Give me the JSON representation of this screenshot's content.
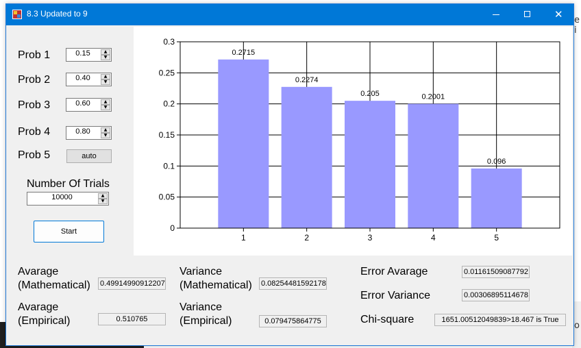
{
  "window": {
    "title": "8.3 Updated to 9"
  },
  "background": {
    "text_right_top": "e i",
    "text_right_bottom": "o"
  },
  "probs": [
    {
      "label": "Prob 1",
      "value": "0.15"
    },
    {
      "label": "Prob 2",
      "value": "0.40"
    },
    {
      "label": "Prob 3",
      "value": "0.60"
    },
    {
      "label": "Prob 4",
      "value": "0.80"
    }
  ],
  "prob5": {
    "label": "Prob 5",
    "value": "auto"
  },
  "trials": {
    "label": "Number Of Trials",
    "value": "10000"
  },
  "start_button": "Start",
  "stats": {
    "avg_math_label_1": "Avarage",
    "avg_math_label_2": "(Mathematical)",
    "avg_math_value": "0.49914990912207",
    "avg_emp_label_1": "Avarage",
    "avg_emp_label_2": "(Empirical)",
    "avg_emp_value": "0.510765",
    "var_math_label_1": "Variance",
    "var_math_label_2": "(Mathematical)",
    "var_math_value": "0.08254481592178",
    "var_emp_label_1": "Variance",
    "var_emp_label_2": "(Empirical)",
    "var_emp_value": "0.079475864775",
    "err_avg_label": "Error Avarage",
    "err_avg_value": "0.01161509087792",
    "err_var_label": "Error Variance",
    "err_var_value": "0.00306895114678",
    "chi_label": "Chi-square",
    "chi_value": "1651.00512049839>18.467 is True"
  },
  "chart_data": {
    "type": "bar",
    "categories": [
      "1",
      "2",
      "3",
      "4",
      "5"
    ],
    "values": [
      0.2715,
      0.2274,
      0.205,
      0.2001,
      0.096
    ],
    "value_labels": [
      "0.2715",
      "0.2274",
      "0.205",
      "0.2001",
      "0.096"
    ],
    "yticks": [
      "0",
      "0.05",
      "0.1",
      "0.15",
      "0.2",
      "0.25",
      "0.3"
    ],
    "ylim": [
      0,
      0.3
    ],
    "grid": true,
    "bar_color": "#9999ff",
    "title": "",
    "xlabel": "",
    "ylabel": ""
  }
}
